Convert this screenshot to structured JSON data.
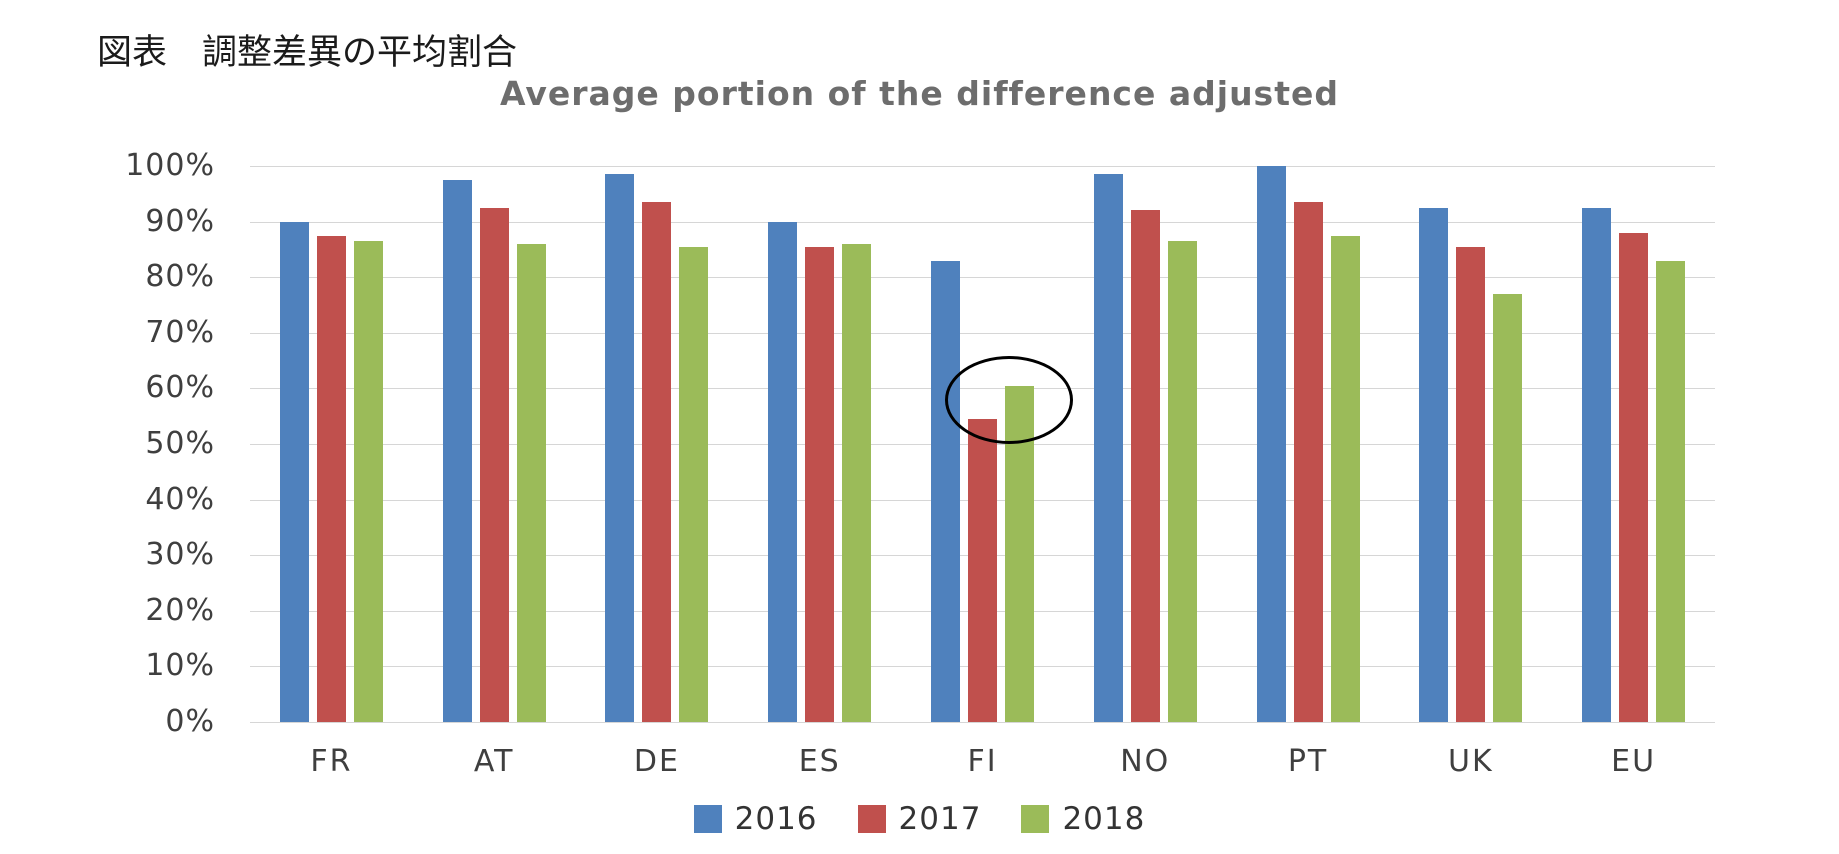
{
  "figure_caption": "図表　調整差異の平均割合",
  "chart_data": {
    "type": "bar",
    "title": "Average portion of the difference adjusted",
    "categories": [
      "FR",
      "AT",
      "DE",
      "ES",
      "FI",
      "NO",
      "PT",
      "UK",
      "EU"
    ],
    "series": [
      {
        "name": "2016",
        "color": "#4F81BD",
        "values": [
          90,
          97.5,
          98.5,
          90,
          83,
          98.5,
          100,
          92.5,
          92.5
        ]
      },
      {
        "name": "2017",
        "color": "#C0504D",
        "values": [
          87.5,
          92.5,
          93.5,
          85.5,
          54.5,
          92,
          93.5,
          85.5,
          88
        ]
      },
      {
        "name": "2018",
        "color": "#9BBB59",
        "values": [
          86.5,
          86,
          85.5,
          86,
          60.5,
          86.5,
          87.5,
          77,
          83
        ]
      }
    ],
    "xlabel": "",
    "ylabel": "",
    "ylim": [
      0,
      100
    ],
    "ytick_step": 10,
    "ytick_labels": [
      "0%",
      "10%",
      "20%",
      "30%",
      "40%",
      "50%",
      "60%",
      "70%",
      "80%",
      "90%",
      "100%"
    ],
    "grid": true,
    "legend_position": "bottom",
    "annotation": {
      "shape": "ellipse",
      "color": "#000000",
      "category": "FI",
      "series": [
        "2017",
        "2018"
      ],
      "note": "hand-drawn style ellipse circling the FI 2017 and 2018 bars"
    }
  }
}
